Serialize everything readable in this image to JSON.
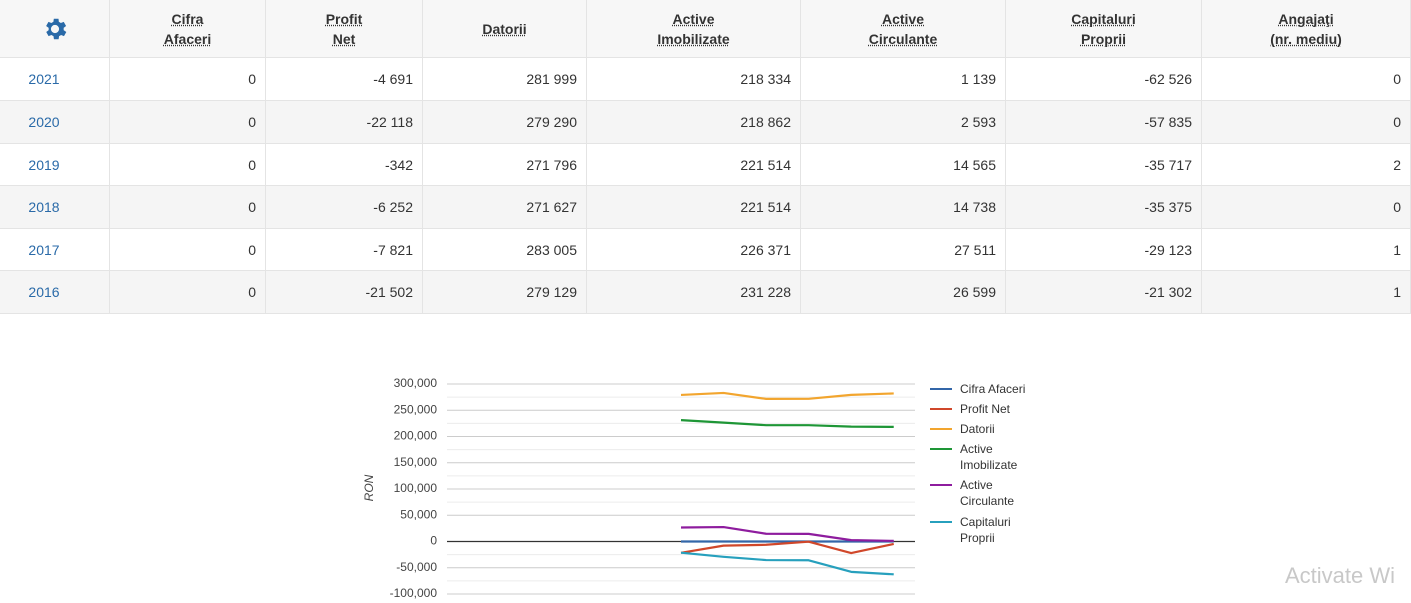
{
  "table": {
    "header": [
      [
        "Cifra",
        "Afaceri"
      ],
      [
        "Profit",
        "Net"
      ],
      [
        "Datorii"
      ],
      [
        "Active",
        "Imobilizate"
      ],
      [
        "Active",
        "Circulante"
      ],
      [
        "Capitaluri",
        "Proprii"
      ],
      [
        "Angajaţi",
        "(nr. mediu)"
      ]
    ],
    "rows": [
      [
        "2021",
        "0",
        "-4 691",
        "281 999",
        "218 334",
        "1 139",
        "-62 526",
        "0"
      ],
      [
        "2020",
        "0",
        "-22 118",
        "279 290",
        "218 862",
        "2 593",
        "-57 835",
        "0"
      ],
      [
        "2019",
        "0",
        "-342",
        "271 796",
        "221 514",
        "14 565",
        "-35 717",
        "2"
      ],
      [
        "2018",
        "0",
        "-6 252",
        "271 627",
        "221 514",
        "14 738",
        "-35 375",
        "0"
      ],
      [
        "2017",
        "0",
        "-7 821",
        "283 005",
        "226 371",
        "27 511",
        "-29 123",
        "1"
      ],
      [
        "2016",
        "0",
        "-21 502",
        "279 129",
        "231 228",
        "26 599",
        "-21 302",
        "1"
      ]
    ]
  },
  "chart_data": {
    "type": "line",
    "ylabel": "RON",
    "categories": [
      null,
      null,
      null,
      null,
      null,
      null,
      null,
      null,
      null,
      null,
      null
    ],
    "series": [
      {
        "name": "Cifra Afaceri",
        "color": "#3366a8",
        "values": [
          null,
          null,
          null,
          null,
          null,
          0,
          0,
          0,
          0,
          0,
          0
        ]
      },
      {
        "name": "Profit Net",
        "color": "#d0472a",
        "values": [
          null,
          null,
          null,
          null,
          null,
          -21502,
          -7821,
          -6252,
          -342,
          -22118,
          -4691
        ]
      },
      {
        "name": "Datorii",
        "color": "#f2a52e",
        "values": [
          null,
          null,
          null,
          null,
          null,
          279129,
          283005,
          271627,
          271796,
          279290,
          281999
        ]
      },
      {
        "name": "Active Imobilizate",
        "color": "#1e9636",
        "values": [
          null,
          null,
          null,
          null,
          null,
          231228,
          226371,
          221514,
          221514,
          218862,
          218334
        ]
      },
      {
        "name": "Active Circulante",
        "color": "#8e1c9e",
        "values": [
          null,
          null,
          null,
          null,
          null,
          26599,
          27511,
          14738,
          14565,
          2593,
          1139
        ]
      },
      {
        "name": "Capitaluri Proprii",
        "color": "#27a0bd",
        "values": [
          null,
          null,
          null,
          null,
          null,
          -21302,
          -29123,
          -35375,
          -35717,
          -57835,
          -62526
        ]
      }
    ],
    "ylim": [
      -100000,
      300000
    ],
    "yticks": [
      {
        "value": -100000,
        "label": "-100,000"
      },
      {
        "value": -50000,
        "label": "-50,000"
      },
      0,
      {
        "value": 50000,
        "label": "50,000"
      },
      {
        "value": 100000,
        "label": "100,000"
      },
      {
        "value": 150000,
        "label": "150,000"
      },
      {
        "value": 200000,
        "label": "200,000"
      },
      {
        "value": 250000,
        "label": "250,000"
      },
      {
        "value": 300000,
        "label": "300,000"
      }
    ],
    "grid": true,
    "legend": "right"
  },
  "watermark": "Activate Wi"
}
